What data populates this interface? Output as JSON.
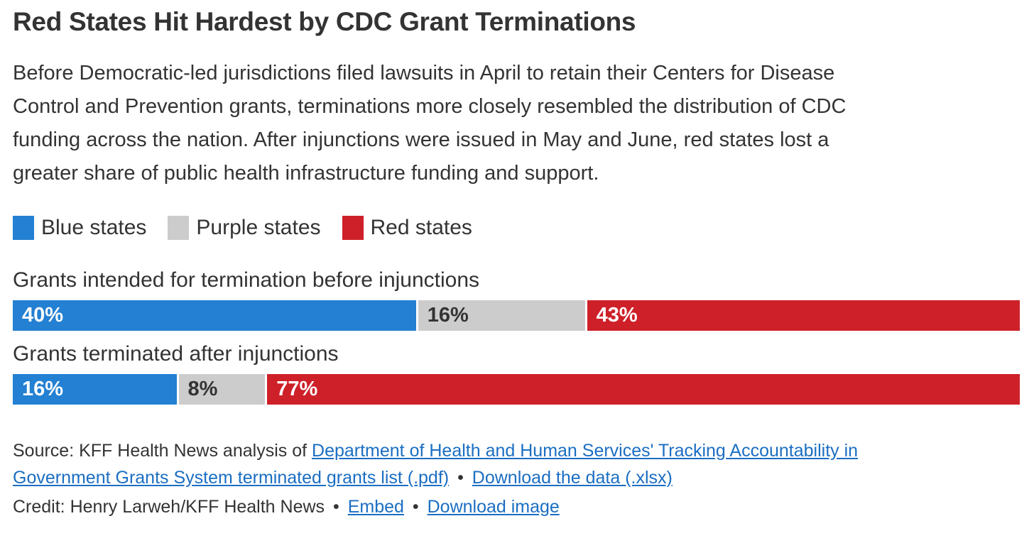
{
  "title": "Red States Hit Hardest by CDC Grant Terminations",
  "subtitle": "Before Democratic-led jurisdictions filed lawsuits in April to retain their Centers for Disease Control and Prevention grants, terminations more closely resembled the distribution of CDC funding across the nation. After injunctions were issued in May and June, red states lost a greater share of public health infrastructure funding and support.",
  "colors": {
    "blue": "#2380d2",
    "purple": "#cccccc",
    "red": "#ce2029",
    "text": "#333333",
    "link": "#1b6ec2",
    "background": "#ffffff"
  },
  "legend": {
    "items": [
      {
        "label": "Blue states",
        "color": "#2380d2"
      },
      {
        "label": "Purple states",
        "color": "#cccccc"
      },
      {
        "label": "Red states",
        "color": "#ce2029"
      }
    ]
  },
  "chart_data": {
    "type": "bar",
    "variant": "horizontal-stacked",
    "unit": "percent",
    "xlim": [
      0,
      100
    ],
    "grid": false,
    "legend_position": "top",
    "categories": [
      "Grants intended for termination before injunctions",
      "Grants terminated after injunctions"
    ],
    "series": [
      {
        "name": "Blue states",
        "color": "#2380d2",
        "values": [
          40,
          16
        ]
      },
      {
        "name": "Purple states",
        "color": "#cccccc",
        "values": [
          16,
          8
        ]
      },
      {
        "name": "Red states",
        "color": "#ce2029",
        "values": [
          43,
          77
        ]
      }
    ],
    "rows": [
      {
        "label": "Grants intended for termination before injunctions",
        "segments": [
          {
            "name": "Blue states",
            "value": 40,
            "display": "40%",
            "color": "#2380d2"
          },
          {
            "name": "Purple states",
            "value": 16,
            "display": "16%",
            "color": "#cccccc"
          },
          {
            "name": "Red states",
            "value": 43,
            "display": "43%",
            "color": "#ce2029"
          }
        ]
      },
      {
        "label": "Grants terminated after injunctions",
        "segments": [
          {
            "name": "Blue states",
            "value": 16,
            "display": "16%",
            "color": "#2380d2"
          },
          {
            "name": "Purple states",
            "value": 8,
            "display": "8%",
            "color": "#cccccc"
          },
          {
            "name": "Red states",
            "value": 77,
            "display": "77%",
            "color": "#ce2029"
          }
        ]
      }
    ]
  },
  "source": {
    "prefix": "Source: KFF Health News analysis of",
    "link_tags": "Department of Health and Human Services' Tracking Accountability in Government Grants System terminated grants list (.pdf)",
    "separator": "•",
    "link_download": "Download the data (.xlsx)"
  },
  "credit": {
    "text": "Credit: Henry Larweh/KFF Health News",
    "separator": "•",
    "embed_label": "Embed",
    "download_label": "Download image"
  }
}
